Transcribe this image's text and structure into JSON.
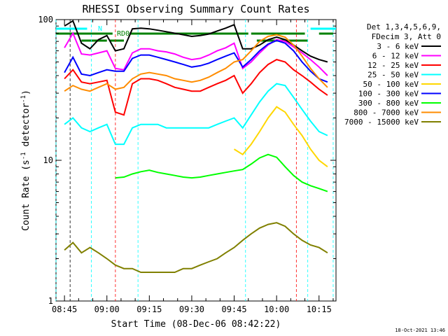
{
  "chart_data": {
    "type": "line",
    "title": "RHESSI Observing Summary Count Rates",
    "xlabel": "Start Time (08-Dec-06 08:42:22)",
    "ylabel_main": "Count Rate (s",
    "ylabel_sup1": "-1",
    "ylabel_mid": " detector",
    "ylabel_sup2": "-1",
    "ylabel_end": ")",
    "y_scale": "log",
    "ylim": [
      1,
      100
    ],
    "xlim_minutes": [
      -3,
      96
    ],
    "x_tick_labels": [
      "08:45",
      "09:00",
      "09:15",
      "09:30",
      "09:45",
      "10:00",
      "10:15"
    ],
    "x_ticks_minutes": [
      0,
      15,
      30,
      45,
      60,
      75,
      90
    ],
    "y_tick_labels": [
      "1",
      "10",
      "100"
    ],
    "y_ticks": [
      1,
      10,
      100
    ],
    "legend_header": [
      "Det 1,3,4,5,6,9,",
      "FDecim 3, Att 0"
    ],
    "series": [
      {
        "name": "3 - 6 keV",
        "color": "#000000",
        "x": [
          0,
          3,
          6,
          9,
          12,
          15,
          18,
          21,
          24,
          27,
          30,
          33,
          36,
          39,
          42,
          45,
          48,
          51,
          54,
          57,
          60,
          63,
          66,
          69,
          72,
          75,
          78,
          81,
          84,
          87,
          90,
          93
        ],
        "y": [
          90,
          98,
          68,
          62,
          72,
          77,
          60,
          62,
          86,
          87,
          86,
          84,
          82,
          80,
          78,
          76,
          77,
          79,
          83,
          87,
          92,
          62,
          62,
          66,
          72,
          75,
          72,
          66,
          60,
          55,
          52,
          50
        ]
      },
      {
        "name": "6 - 12 keV",
        "color": "#ff00ff",
        "x": [
          0,
          3,
          6,
          9,
          12,
          15,
          18,
          21,
          24,
          27,
          30,
          33,
          36,
          39,
          42,
          45,
          48,
          51,
          54,
          57,
          60,
          63,
          66,
          69,
          72,
          75,
          78,
          81,
          84,
          87,
          90,
          93
        ],
        "y": [
          63,
          80,
          57,
          56,
          58,
          60,
          45,
          44,
          58,
          62,
          62,
          60,
          59,
          57,
          54,
          52,
          53,
          56,
          60,
          63,
          68,
          45,
          50,
          58,
          66,
          72,
          70,
          64,
          58,
          52,
          46,
          40
        ]
      },
      {
        "name": "12 - 25 keV",
        "color": "#ff0000",
        "x": [
          0,
          3,
          6,
          9,
          12,
          15,
          18,
          21,
          24,
          27,
          30,
          33,
          36,
          39,
          42,
          45,
          48,
          51,
          54,
          57,
          60,
          63,
          66,
          69,
          72,
          75,
          78,
          81,
          84,
          87,
          90,
          93
        ],
        "y": [
          38,
          44,
          36,
          35,
          36,
          37,
          22,
          21,
          35,
          38,
          38,
          37,
          35,
          33,
          32,
          31,
          31,
          33,
          35,
          37,
          40,
          30,
          35,
          42,
          48,
          52,
          50,
          44,
          40,
          36,
          32,
          29
        ]
      },
      {
        "name": "25 - 50 keV",
        "color": "#00ffff",
        "x": [
          0,
          3,
          6,
          9,
          12,
          15,
          18,
          21,
          24,
          27,
          30,
          33,
          36,
          39,
          42,
          45,
          48,
          51,
          54,
          57,
          60,
          63,
          66,
          69,
          72,
          75,
          78,
          81,
          84,
          87,
          90,
          93
        ],
        "y": [
          18,
          20,
          17,
          16,
          17,
          18,
          13,
          13,
          17,
          18,
          18,
          18,
          17,
          17,
          17,
          17,
          17,
          17,
          18,
          19,
          20,
          17,
          21,
          26,
          31,
          35,
          34,
          28,
          23,
          19,
          16,
          15
        ]
      },
      {
        "name": "50 - 100 keV",
        "color": "#ffd700",
        "x": [
          60,
          63,
          66,
          69,
          72,
          75,
          78,
          81,
          84,
          87,
          90,
          93
        ],
        "y": [
          12,
          11,
          13,
          16,
          20,
          24,
          22,
          18,
          15,
          12,
          10,
          9
        ]
      },
      {
        "name": "100 - 300 keV",
        "color": "#0000ff",
        "x": [
          0,
          3,
          6,
          9,
          12,
          15,
          18,
          21,
          24,
          27,
          30,
          33,
          36,
          39,
          42,
          45,
          48,
          51,
          54,
          57,
          60,
          63,
          66,
          69,
          72,
          75,
          78,
          81,
          84,
          87,
          90,
          93
        ],
        "y": [
          42,
          54,
          41,
          40,
          42,
          44,
          43,
          43,
          53,
          56,
          56,
          54,
          52,
          50,
          48,
          46,
          47,
          49,
          52,
          55,
          58,
          46,
          52,
          60,
          67,
          71,
          68,
          60,
          50,
          43,
          38,
          36
        ]
      },
      {
        "name": "300 - 800 keV",
        "color": "#00ff00",
        "x": [
          18,
          21,
          24,
          27,
          30,
          33,
          36,
          39,
          42,
          45,
          48,
          51,
          54,
          57,
          60,
          63,
          66,
          69,
          72,
          75,
          78,
          81,
          84,
          87,
          90,
          93
        ],
        "y": [
          7.5,
          7.6,
          8.0,
          8.3,
          8.5,
          8.2,
          8.0,
          7.8,
          7.6,
          7.5,
          7.6,
          7.8,
          8.0,
          8.2,
          8.4,
          8.6,
          9.4,
          10.4,
          11.0,
          10.5,
          9.0,
          7.8,
          7.0,
          6.6,
          6.3,
          6.0
        ]
      },
      {
        "name": "800 - 7000 keV",
        "color": "#ff8c00",
        "x": [
          0,
          3,
          6,
          9,
          12,
          15,
          18,
          21,
          24,
          27,
          30,
          33,
          36,
          39,
          42,
          45,
          48,
          51,
          54,
          57,
          60,
          63,
          66,
          69,
          72,
          75,
          78,
          81,
          84,
          87,
          90,
          93
        ],
        "y": [
          31,
          34,
          32,
          31,
          33,
          35,
          32,
          33,
          38,
          41,
          42,
          41,
          40,
          38,
          37,
          36,
          37,
          39,
          42,
          45,
          50,
          52,
          60,
          70,
          76,
          78,
          75,
          66,
          55,
          45,
          38,
          33
        ]
      },
      {
        "name": "7000 - 15000 keV",
        "color": "#808000",
        "x": [
          0,
          3,
          6,
          9,
          12,
          15,
          18,
          21,
          24,
          27,
          30,
          33,
          36,
          39,
          42,
          45,
          48,
          51,
          54,
          57,
          60,
          63,
          66,
          69,
          72,
          75,
          78,
          81,
          84,
          87,
          90,
          93
        ],
        "y": [
          2.3,
          2.6,
          2.2,
          2.4,
          2.2,
          2.0,
          1.8,
          1.7,
          1.7,
          1.6,
          1.6,
          1.6,
          1.6,
          1.6,
          1.7,
          1.7,
          1.8,
          1.9,
          2.0,
          2.2,
          2.4,
          2.7,
          3.0,
          3.3,
          3.5,
          3.6,
          3.4,
          3.0,
          2.7,
          2.5,
          2.4,
          2.2
        ]
      }
    ],
    "flag_labels": [
      "N",
      "RD0"
    ],
    "timestamp": "18-Oct-2021 13:46"
  },
  "colors": {
    "background": "#ffffff",
    "axis": "#000000",
    "attenuator_flag": "#008000",
    "night_flag": "#00ffff"
  }
}
